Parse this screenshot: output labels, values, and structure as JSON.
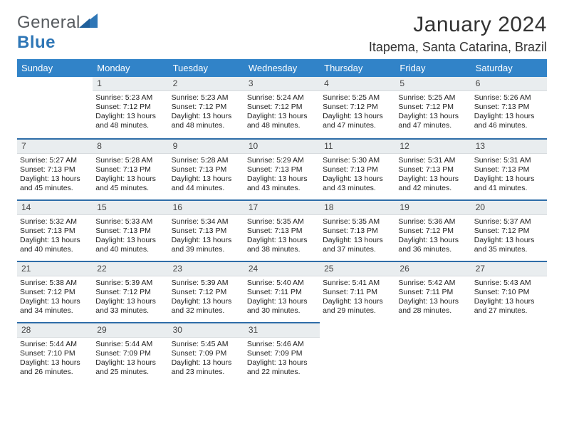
{
  "logo": {
    "general": "General",
    "blue": "Blue"
  },
  "title": "January 2024",
  "location": "Itapema, Santa Catarina, Brazil",
  "colors": {
    "header_bg": "#3183c8",
    "header_text": "#ffffff",
    "daybar_bg": "#e9edef",
    "rule": "#2e6da8",
    "logo_blue": "#2e76b6",
    "logo_gray": "#565a5e"
  },
  "weekdays": [
    "Sunday",
    "Monday",
    "Tuesday",
    "Wednesday",
    "Thursday",
    "Friday",
    "Saturday"
  ],
  "weeks": [
    [
      {
        "blank": true
      },
      {
        "num": "1",
        "sunrise": "5:23 AM",
        "sunset": "7:12 PM",
        "daylight": "13 hours and 48 minutes."
      },
      {
        "num": "2",
        "sunrise": "5:23 AM",
        "sunset": "7:12 PM",
        "daylight": "13 hours and 48 minutes."
      },
      {
        "num": "3",
        "sunrise": "5:24 AM",
        "sunset": "7:12 PM",
        "daylight": "13 hours and 48 minutes."
      },
      {
        "num": "4",
        "sunrise": "5:25 AM",
        "sunset": "7:12 PM",
        "daylight": "13 hours and 47 minutes."
      },
      {
        "num": "5",
        "sunrise": "5:25 AM",
        "sunset": "7:12 PM",
        "daylight": "13 hours and 47 minutes."
      },
      {
        "num": "6",
        "sunrise": "5:26 AM",
        "sunset": "7:13 PM",
        "daylight": "13 hours and 46 minutes."
      }
    ],
    [
      {
        "num": "7",
        "sunrise": "5:27 AM",
        "sunset": "7:13 PM",
        "daylight": "13 hours and 45 minutes."
      },
      {
        "num": "8",
        "sunrise": "5:28 AM",
        "sunset": "7:13 PM",
        "daylight": "13 hours and 45 minutes."
      },
      {
        "num": "9",
        "sunrise": "5:28 AM",
        "sunset": "7:13 PM",
        "daylight": "13 hours and 44 minutes."
      },
      {
        "num": "10",
        "sunrise": "5:29 AM",
        "sunset": "7:13 PM",
        "daylight": "13 hours and 43 minutes."
      },
      {
        "num": "11",
        "sunrise": "5:30 AM",
        "sunset": "7:13 PM",
        "daylight": "13 hours and 43 minutes."
      },
      {
        "num": "12",
        "sunrise": "5:31 AM",
        "sunset": "7:13 PM",
        "daylight": "13 hours and 42 minutes."
      },
      {
        "num": "13",
        "sunrise": "5:31 AM",
        "sunset": "7:13 PM",
        "daylight": "13 hours and 41 minutes."
      }
    ],
    [
      {
        "num": "14",
        "sunrise": "5:32 AM",
        "sunset": "7:13 PM",
        "daylight": "13 hours and 40 minutes."
      },
      {
        "num": "15",
        "sunrise": "5:33 AM",
        "sunset": "7:13 PM",
        "daylight": "13 hours and 40 minutes."
      },
      {
        "num": "16",
        "sunrise": "5:34 AM",
        "sunset": "7:13 PM",
        "daylight": "13 hours and 39 minutes."
      },
      {
        "num": "17",
        "sunrise": "5:35 AM",
        "sunset": "7:13 PM",
        "daylight": "13 hours and 38 minutes."
      },
      {
        "num": "18",
        "sunrise": "5:35 AM",
        "sunset": "7:13 PM",
        "daylight": "13 hours and 37 minutes."
      },
      {
        "num": "19",
        "sunrise": "5:36 AM",
        "sunset": "7:12 PM",
        "daylight": "13 hours and 36 minutes."
      },
      {
        "num": "20",
        "sunrise": "5:37 AM",
        "sunset": "7:12 PM",
        "daylight": "13 hours and 35 minutes."
      }
    ],
    [
      {
        "num": "21",
        "sunrise": "5:38 AM",
        "sunset": "7:12 PM",
        "daylight": "13 hours and 34 minutes."
      },
      {
        "num": "22",
        "sunrise": "5:39 AM",
        "sunset": "7:12 PM",
        "daylight": "13 hours and 33 minutes."
      },
      {
        "num": "23",
        "sunrise": "5:39 AM",
        "sunset": "7:12 PM",
        "daylight": "13 hours and 32 minutes."
      },
      {
        "num": "24",
        "sunrise": "5:40 AM",
        "sunset": "7:11 PM",
        "daylight": "13 hours and 30 minutes."
      },
      {
        "num": "25",
        "sunrise": "5:41 AM",
        "sunset": "7:11 PM",
        "daylight": "13 hours and 29 minutes."
      },
      {
        "num": "26",
        "sunrise": "5:42 AM",
        "sunset": "7:11 PM",
        "daylight": "13 hours and 28 minutes."
      },
      {
        "num": "27",
        "sunrise": "5:43 AM",
        "sunset": "7:10 PM",
        "daylight": "13 hours and 27 minutes."
      }
    ],
    [
      {
        "num": "28",
        "sunrise": "5:44 AM",
        "sunset": "7:10 PM",
        "daylight": "13 hours and 26 minutes."
      },
      {
        "num": "29",
        "sunrise": "5:44 AM",
        "sunset": "7:09 PM",
        "daylight": "13 hours and 25 minutes."
      },
      {
        "num": "30",
        "sunrise": "5:45 AM",
        "sunset": "7:09 PM",
        "daylight": "13 hours and 23 minutes."
      },
      {
        "num": "31",
        "sunrise": "5:46 AM",
        "sunset": "7:09 PM",
        "daylight": "13 hours and 22 minutes."
      },
      {
        "blank": true
      },
      {
        "blank": true
      },
      {
        "blank": true
      }
    ]
  ],
  "labels": {
    "sunrise": "Sunrise: ",
    "sunset": "Sunset: ",
    "daylight": "Daylight: "
  }
}
